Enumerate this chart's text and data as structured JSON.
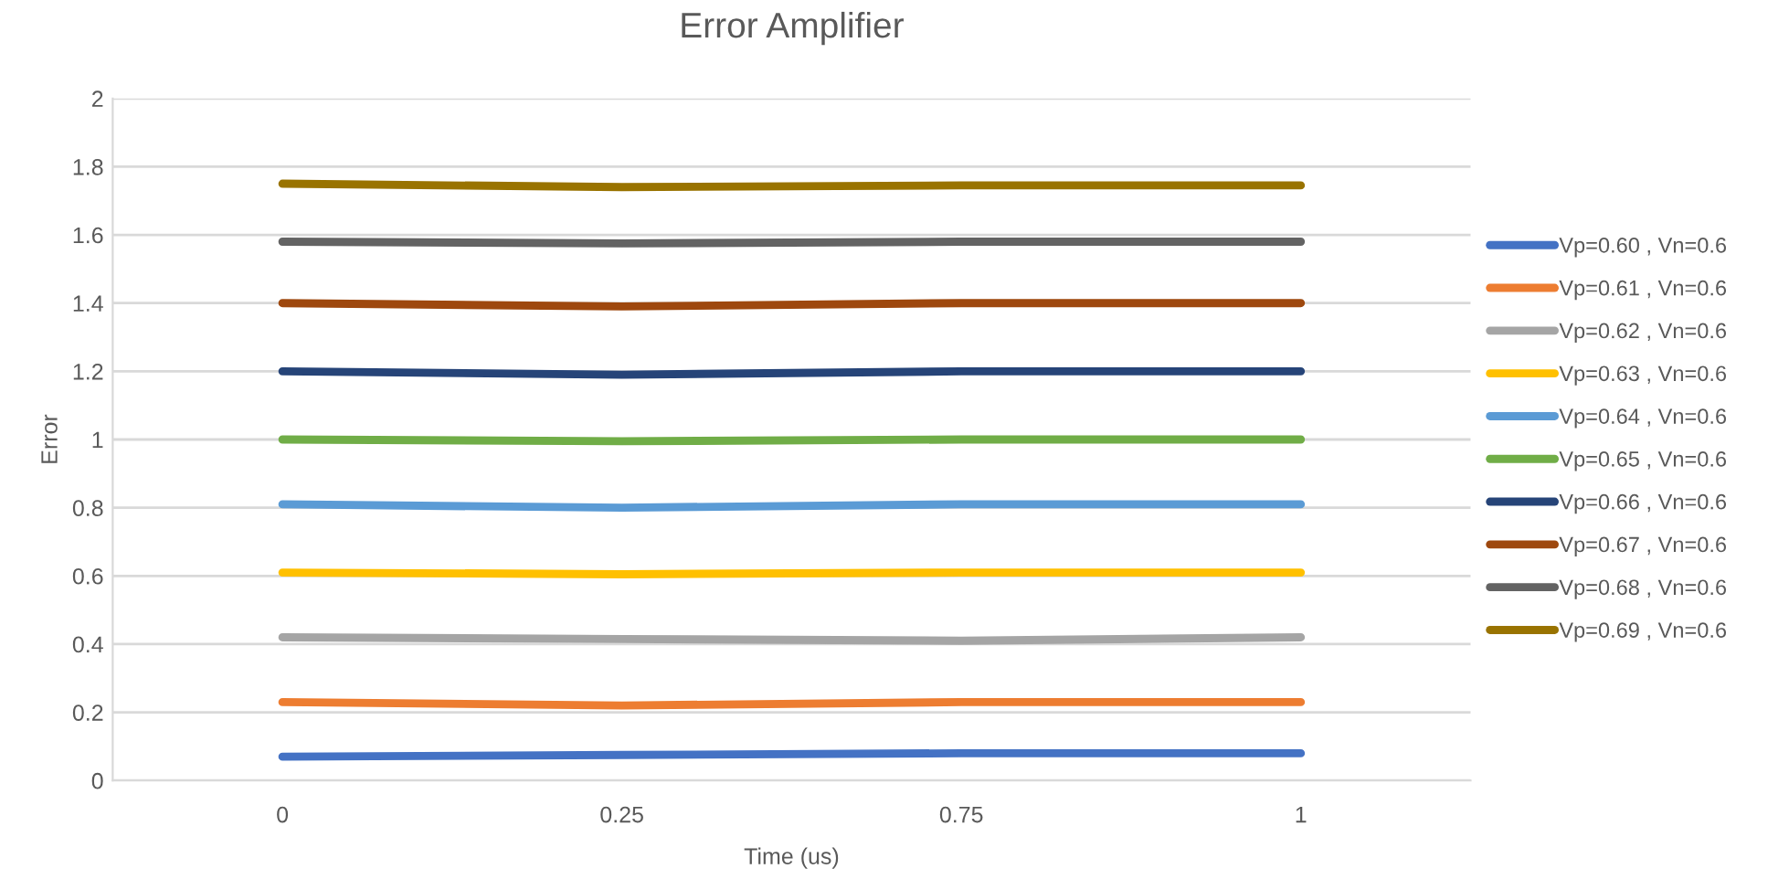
{
  "chart_data": {
    "type": "line",
    "title": "Error Amplifier",
    "xlabel": "Time (us)",
    "ylabel": "Error",
    "categories": [
      "0",
      "0.25",
      "0.75",
      "1"
    ],
    "series": [
      {
        "name": "Vp=0.60 , Vn=0.6",
        "color": "#4472c4",
        "values": [
          0.07,
          0.075,
          0.08,
          0.08
        ]
      },
      {
        "name": "Vp=0.61 , Vn=0.6",
        "color": "#ed7d31",
        "values": [
          0.23,
          0.22,
          0.23,
          0.23
        ]
      },
      {
        "name": "Vp=0.62 , Vn=0.6",
        "color": "#a5a5a5",
        "values": [
          0.42,
          0.415,
          0.41,
          0.42
        ]
      },
      {
        "name": "Vp=0.63 , Vn=0.6",
        "color": "#ffc000",
        "values": [
          0.61,
          0.605,
          0.61,
          0.61
        ]
      },
      {
        "name": "Vp=0.64 , Vn=0.6",
        "color": "#5b9bd5",
        "values": [
          0.81,
          0.8,
          0.81,
          0.81
        ]
      },
      {
        "name": "Vp=0.65 , Vn=0.6",
        "color": "#70ad47",
        "values": [
          1.0,
          0.995,
          1.0,
          1.0
        ]
      },
      {
        "name": "Vp=0.66 , Vn=0.6",
        "color": "#264478",
        "values": [
          1.2,
          1.19,
          1.2,
          1.2
        ]
      },
      {
        "name": "Vp=0.67 , Vn=0.6",
        "color": "#9e480e",
        "values": [
          1.4,
          1.39,
          1.4,
          1.4
        ]
      },
      {
        "name": "Vp=0.68 , Vn=0.6",
        "color": "#636363",
        "values": [
          1.58,
          1.575,
          1.58,
          1.58
        ]
      },
      {
        "name": "Vp=0.69 , Vn=0.6",
        "color": "#997300",
        "values": [
          1.75,
          1.74,
          1.745,
          1.745
        ]
      }
    ],
    "ylim": [
      0,
      2
    ],
    "yticks": [
      0,
      0.2,
      0.4,
      0.6,
      0.8,
      1,
      1.2,
      1.4,
      1.6,
      1.8,
      2
    ],
    "grid": "y",
    "legend": "right",
    "marker": "none",
    "line_style": "solid"
  }
}
